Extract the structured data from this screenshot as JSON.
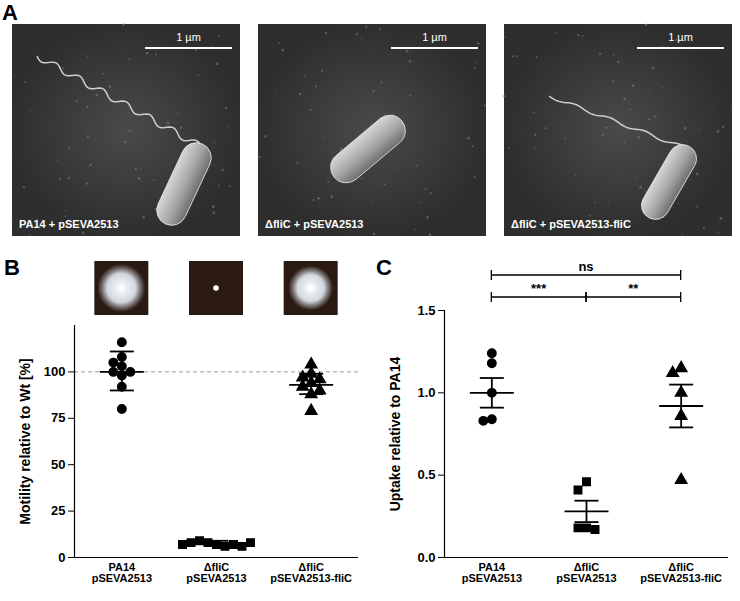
{
  "chart_data": [
    {
      "type": "micrograph",
      "title": "A",
      "images": [
        {
          "label": "PA14 + pSEVA2513",
          "scale_bar": "1 µm",
          "flagellum": true
        },
        {
          "label": "ΔfliC + pSEVA2513",
          "scale_bar": "1 µm",
          "flagellum": false
        },
        {
          "label": "ΔfliC + pSEVA2513-fliC",
          "scale_bar": "1 µm",
          "flagellum": true
        }
      ]
    },
    {
      "type": "scatter",
      "title": "B",
      "y_label": "Motility relative to Wt [%]",
      "categories": [
        "PA14\npSEVA2513",
        "ΔfliC\npSEVA2513",
        "ΔfliC\npSEVA2513-fliC"
      ],
      "values": [
        [
          116,
          108,
          105,
          103,
          100,
          100,
          98,
          92,
          80
        ],
        [
          7,
          8,
          6,
          9,
          7,
          8,
          6,
          7,
          8
        ],
        [
          104,
          99,
          97,
          96,
          94,
          92,
          90,
          88,
          79
        ]
      ],
      "mean": [
        100,
        7.3,
        93
      ],
      "error_low": [
        90,
        6.5,
        88
      ],
      "error_high": [
        111,
        9,
        99
      ],
      "marker": [
        "circle",
        "square",
        "triangle"
      ],
      "color": "#000000",
      "ylim": [
        0,
        125
      ],
      "yticks": [
        0,
        25,
        50,
        75,
        100
      ],
      "hline": 100
    },
    {
      "type": "scatter",
      "title": "C",
      "y_label": "Uptake relative to PA14",
      "categories": [
        "PA14\npSEVA2513",
        "ΔfliC\npSEVA2513",
        "ΔfliC\npSEVA2513-fliC"
      ],
      "values": [
        [
          1.24,
          1.18,
          1.0,
          0.84,
          0.83
        ],
        [
          0.46,
          0.41,
          0.18,
          0.18,
          0.17
        ],
        [
          1.15,
          1.12,
          1.0,
          0.86,
          0.47
        ]
      ],
      "mean": [
        1.0,
        0.28,
        0.92
      ],
      "error_low": [
        0.91,
        0.215,
        0.79
      ],
      "error_high": [
        1.09,
        0.345,
        1.05
      ],
      "marker": [
        "circle",
        "square",
        "triangle"
      ],
      "color": "#000000",
      "ylim": [
        0,
        1.5
      ],
      "yticks": [
        {
          "value": 0,
          "label": "0.0"
        },
        {
          "value": 0.5,
          "label": "0.5"
        },
        {
          "value": 1,
          "label": "1.0"
        },
        {
          "value": 1.5,
          "label": "1.5"
        }
      ],
      "comparisons": [
        {
          "from": 0,
          "to": 2,
          "label": "ns"
        },
        {
          "from": 0,
          "to": 1,
          "label": "***"
        },
        {
          "from": 1,
          "to": 2,
          "label": "**"
        }
      ]
    }
  ]
}
